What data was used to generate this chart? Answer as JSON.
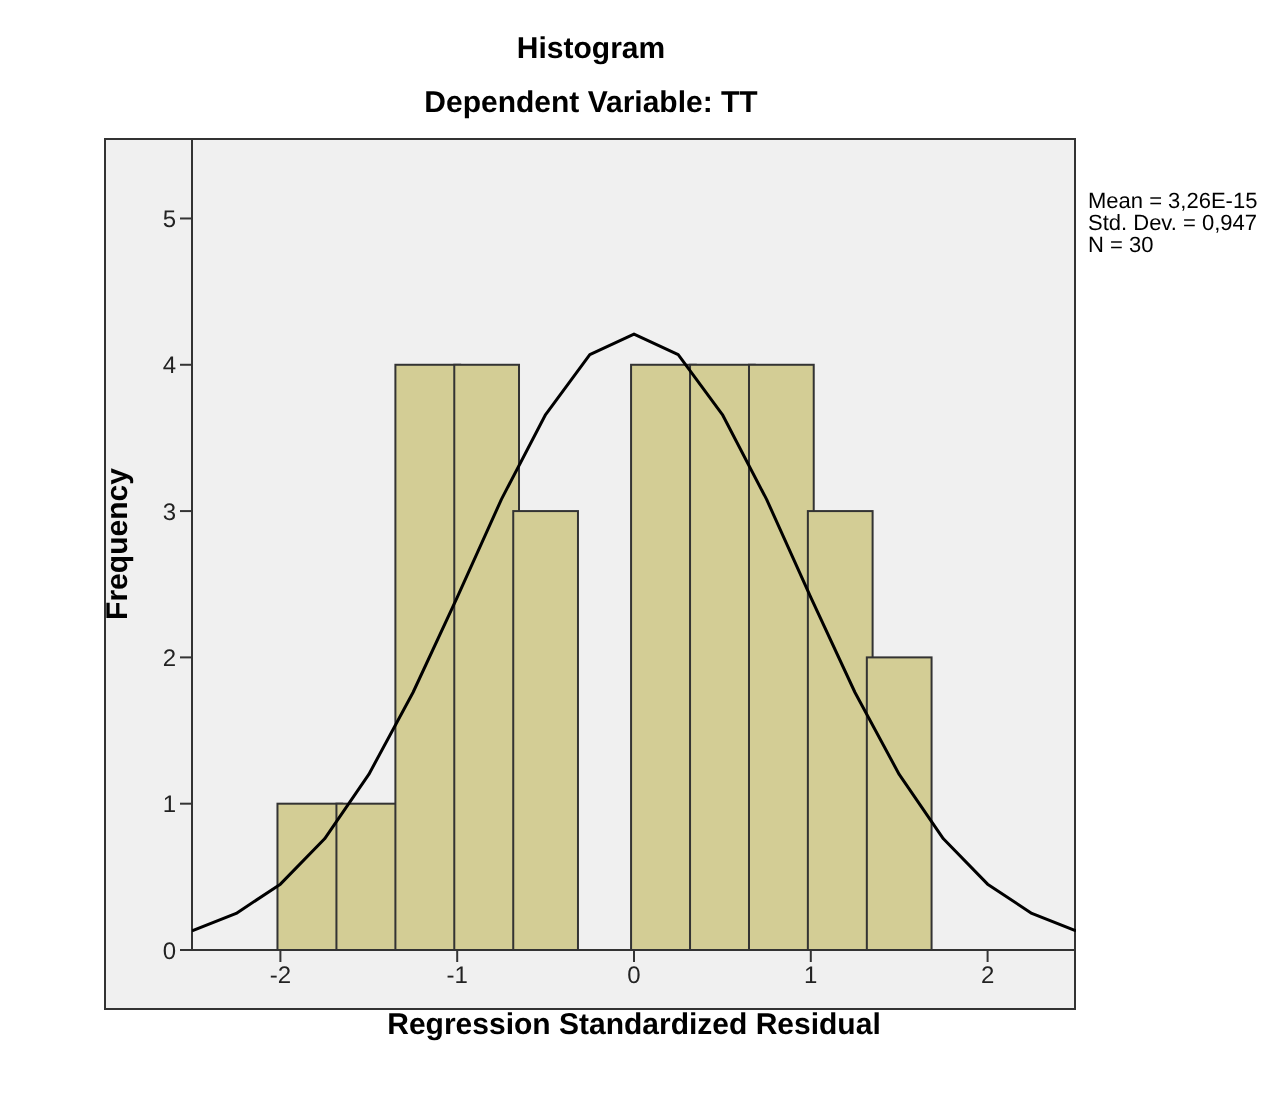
{
  "chart_data": {
    "type": "histogram",
    "title": "Histogram",
    "subtitle": "Dependent Variable: TT",
    "xlabel": "Regression Standardized Residual",
    "ylabel": "Frequency",
    "bins": [
      -2,
      -1.667,
      -1.333,
      -1,
      -0.667,
      -0.333,
      0,
      0.333,
      0.667,
      1,
      1.333,
      1.667
    ],
    "values": [
      1,
      1,
      4,
      4,
      3,
      0,
      4,
      4,
      4,
      3,
      2
    ],
    "color": "#d3cd95",
    "series": [
      {
        "type": "line",
        "color": "#000000",
        "x": [
          -2.5,
          -2.25,
          -2,
          -1.75,
          -1.5,
          -1.25,
          -1,
          -0.75,
          -0.5,
          -0.25,
          0,
          0.25,
          0.5,
          0.75,
          1,
          1.25,
          1.5,
          1.75,
          2,
          2.25,
          2.5
        ],
        "values": [
          0.13,
          0.25,
          0.45,
          0.76,
          1.2,
          1.76,
          2.41,
          3.08,
          3.66,
          4.07,
          4.21,
          4.07,
          3.66,
          3.08,
          2.41,
          1.76,
          1.2,
          0.76,
          0.45,
          0.25,
          0.13
        ]
      }
    ],
    "xlim": [
      -2.5,
      2.5
    ],
    "xticks": [
      -2,
      -1,
      0,
      1,
      2
    ],
    "ylim": [
      0,
      5.55
    ],
    "yticks": [
      0,
      1,
      2,
      3,
      4,
      5
    ],
    "grid": false,
    "marker": "none",
    "annotations": [
      "Mean = 3,26E-15",
      "Std. Dev. = 0,947",
      "N = 30"
    ]
  }
}
